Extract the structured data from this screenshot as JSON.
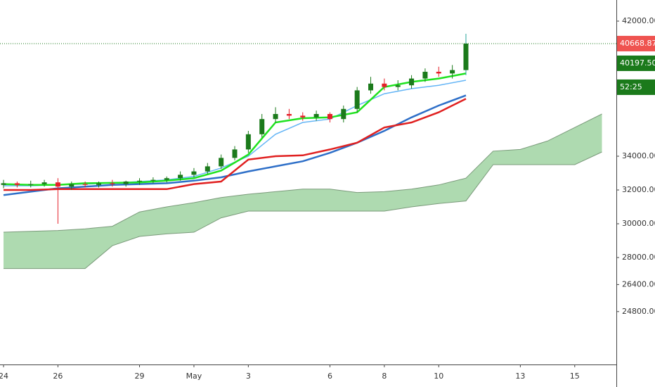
{
  "chart_data": {
    "type": "candlestick",
    "ylim": [
      21667,
      43250
    ],
    "xlim": [
      -0.13,
      22.53
    ],
    "yticks": [
      {
        "value": 42000,
        "label": "42000.00"
      },
      {
        "value": 34000,
        "label": "34000.00"
      },
      {
        "value": 32000,
        "label": "32000.00"
      },
      {
        "value": 30000,
        "label": "30000.00"
      },
      {
        "value": 28000,
        "label": "28000.00"
      },
      {
        "value": 26400,
        "label": "26400.00"
      },
      {
        "value": 24800,
        "label": "24800.00"
      }
    ],
    "xticks": [
      {
        "value": 0,
        "label": "24"
      },
      {
        "value": 2,
        "label": "26"
      },
      {
        "value": 5,
        "label": "29"
      },
      {
        "value": 7,
        "label": "May"
      },
      {
        "value": 9,
        "label": "3"
      },
      {
        "value": 12,
        "label": "6"
      },
      {
        "value": 14,
        "label": "8"
      },
      {
        "value": 16,
        "label": "10"
      },
      {
        "value": 19,
        "label": "13"
      },
      {
        "value": 21,
        "label": "15"
      }
    ],
    "up_color": "#1b7a1b",
    "down_color": "#e5202a",
    "candles": {
      "x": [
        0,
        0.5,
        1,
        1.5,
        2,
        2.5,
        3,
        3.5,
        4,
        4.5,
        5,
        5.5,
        6,
        6.5,
        7,
        7.5,
        8,
        8.5,
        9,
        9.5,
        10,
        10.5,
        11,
        11.5,
        12,
        12.5,
        13,
        13.5,
        14,
        14.5,
        15,
        15.5,
        16,
        16.5,
        17
      ],
      "open": [
        32300,
        32400,
        32300,
        32350,
        32450,
        32200,
        32350,
        32300,
        32400,
        32350,
        32500,
        32550,
        32600,
        32700,
        32900,
        33100,
        33400,
        33900,
        34400,
        35300,
        36200,
        36500,
        36400,
        36300,
        36500,
        36200,
        36800,
        37900,
        38300,
        38100,
        38200,
        38600,
        39000,
        38900,
        39100
      ],
      "high": [
        32600,
        32500,
        32550,
        32600,
        32700,
        32500,
        32500,
        32500,
        32600,
        32550,
        32700,
        32750,
        32800,
        33100,
        33300,
        33600,
        34100,
        34600,
        35500,
        36500,
        36900,
        36800,
        36600,
        36700,
        36600,
        37000,
        38100,
        38700,
        38600,
        38500,
        38800,
        39200,
        39300,
        39400,
        41250
      ],
      "low": [
        32100,
        32150,
        32150,
        32200,
        30000,
        32000,
        32150,
        32150,
        32200,
        32200,
        32300,
        32400,
        32450,
        32550,
        32750,
        32950,
        33250,
        33750,
        34200,
        35100,
        36000,
        36200,
        36100,
        36100,
        36000,
        36000,
        36600,
        37700,
        37900,
        37900,
        38000,
        38400,
        38700,
        38600,
        38800
      ],
      "close": [
        32400,
        32300,
        32350,
        32450,
        32200,
        32350,
        32300,
        32400,
        32350,
        32500,
        32550,
        32600,
        32700,
        32900,
        33100,
        33400,
        33900,
        34400,
        35300,
        36200,
        36500,
        36400,
        36300,
        36500,
        36200,
        36800,
        37900,
        38300,
        38100,
        38200,
        38600,
        39000,
        38900,
        39100,
        40668.87
      ]
    },
    "line_x": [
      0,
      1,
      2,
      3,
      4,
      5,
      6,
      7,
      8,
      9,
      10,
      11,
      12,
      13,
      14,
      15,
      16,
      17
    ],
    "lines": [
      {
        "color": "#2e6fc8",
        "values": [
          31700,
          31900,
          32100,
          32200,
          32300,
          32350,
          32400,
          32550,
          32750,
          33100,
          33400,
          33700,
          34200,
          34800,
          35500,
          36300,
          37000,
          37600
        ]
      },
      {
        "color": "#e02020",
        "values": [
          32000,
          32000,
          32050,
          32050,
          32050,
          32050,
          32050,
          32350,
          32500,
          33800,
          34000,
          34050,
          34400,
          34800,
          35700,
          36000,
          36600,
          37400
        ]
      },
      {
        "color": "#64b5f6",
        "values": [
          32250,
          32250,
          32300,
          32350,
          32400,
          32500,
          32600,
          32800,
          33300,
          34000,
          35300,
          36000,
          36200,
          37000,
          37700,
          38000,
          38200,
          38500
        ]
      },
      {
        "color": "#1fe21f",
        "values": [
          32350,
          32300,
          32300,
          32400,
          32420,
          32450,
          32550,
          32700,
          33150,
          34100,
          36000,
          36250,
          36300,
          36600,
          38100,
          38400,
          38600,
          38900
        ]
      }
    ],
    "cloud": {
      "color": "#a5d6a7",
      "x": [
        0,
        1,
        2,
        3,
        4,
        5,
        6,
        7,
        8,
        9,
        10,
        11,
        12,
        13,
        14,
        15,
        16,
        17,
        18,
        19,
        20,
        21,
        22
      ],
      "upper": [
        29500,
        29550,
        29600,
        29700,
        29850,
        30700,
        31000,
        31250,
        31550,
        31750,
        31900,
        32050,
        32050,
        31850,
        31900,
        32050,
        32300,
        32700,
        34300,
        34400,
        34900,
        35700,
        36500
      ],
      "lower": [
        27350,
        27350,
        27350,
        27350,
        28700,
        29250,
        29400,
        29500,
        30350,
        30750,
        30750,
        30750,
        30750,
        30750,
        30750,
        31000,
        31200,
        31350,
        33500,
        33500,
        33500,
        33500,
        34250
      ]
    },
    "last_price": {
      "value": 40668.87,
      "label": "40668.87",
      "color": "#ef5350"
    },
    "price_labels": [
      {
        "label": "40197.50",
        "color": "#1b7a1b"
      },
      {
        "label": "52:25",
        "color": "#1b7a1b"
      }
    ]
  }
}
